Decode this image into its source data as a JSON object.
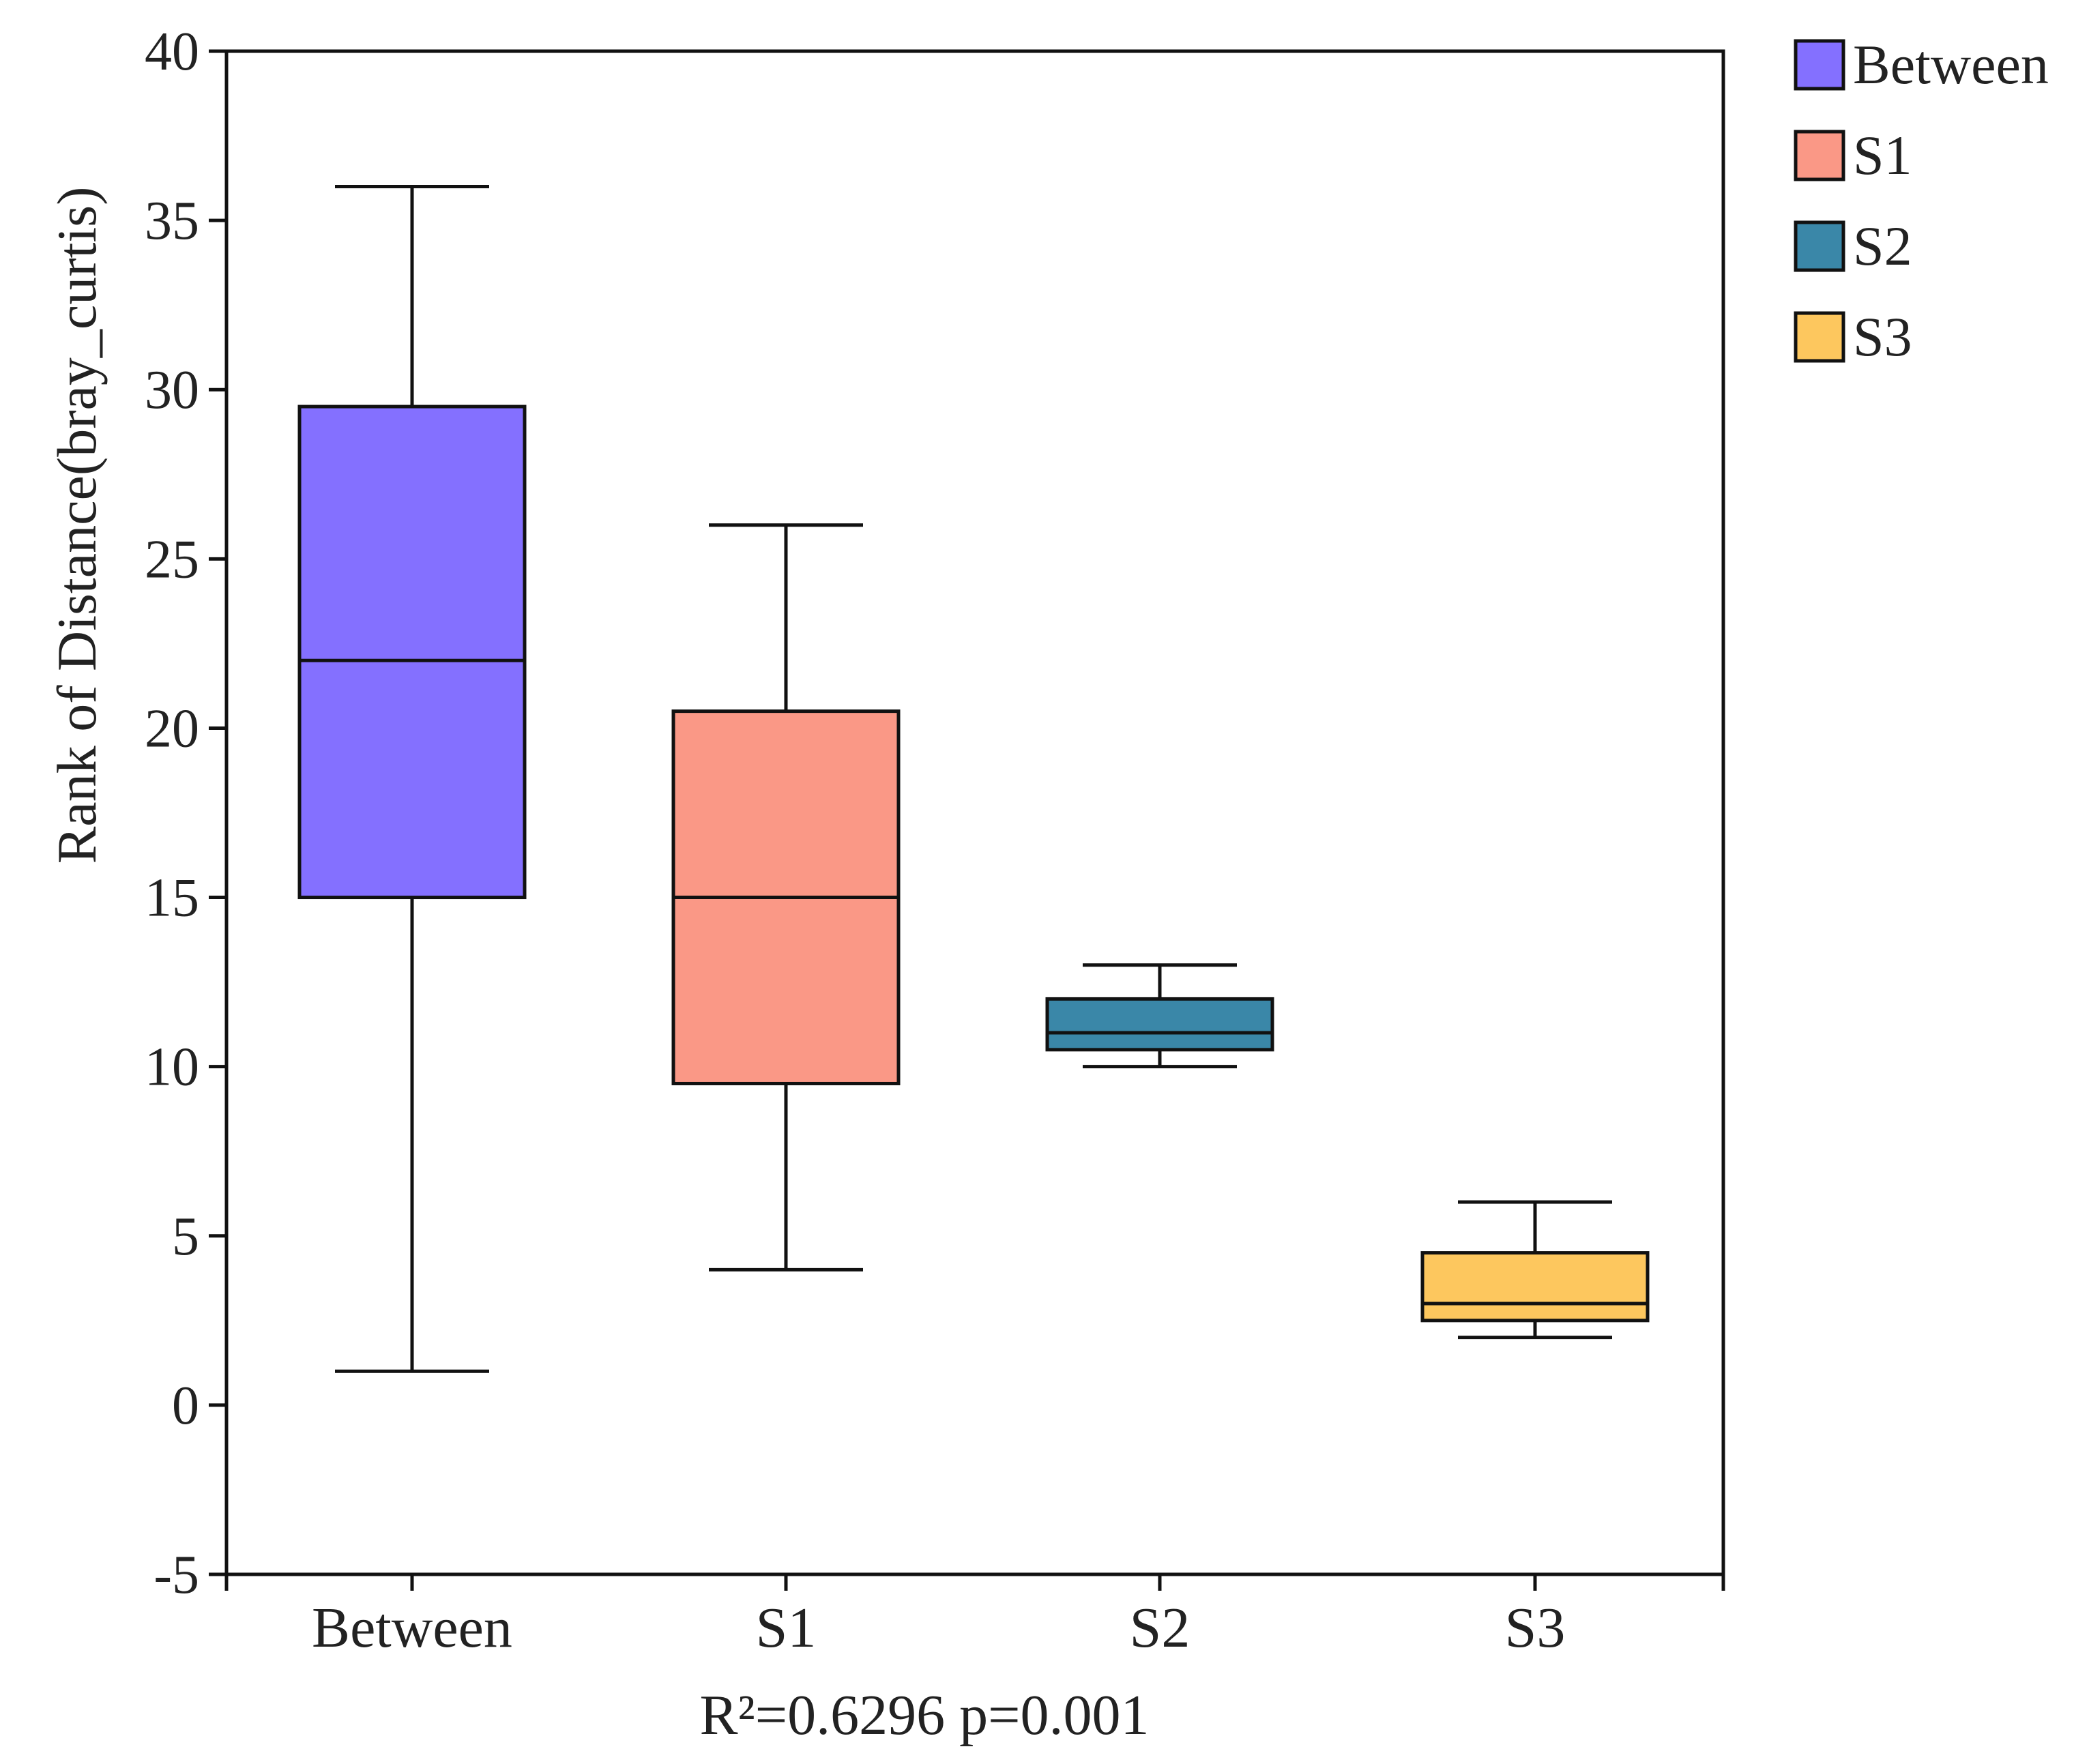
{
  "chart_data": {
    "type": "box",
    "categories": [
      "Between",
      "S1",
      "S2",
      "S3"
    ],
    "series": [
      {
        "name": "Between",
        "color": "#8470FF",
        "min": 1,
        "q1": 15,
        "median": 22,
        "q3": 29.5,
        "max": 36
      },
      {
        "name": "S1",
        "color": "#FA9886",
        "min": 4,
        "q1": 9.5,
        "median": 15,
        "q3": 20.5,
        "max": 26
      },
      {
        "name": "S2",
        "color": "#3A87A8",
        "min": 10,
        "q1": 10.5,
        "median": 11,
        "q3": 12,
        "max": 13
      },
      {
        "name": "S3",
        "color": "#FDC75E",
        "min": 2,
        "q1": 2.5,
        "median": 3,
        "q3": 4.5,
        "max": 6
      }
    ],
    "ylabel": "Rank of Distance(bray_curtis)",
    "xlabel": "",
    "ylim": [
      -5,
      40
    ],
    "yticks": [
      -5,
      0,
      5,
      10,
      15,
      20,
      25,
      30,
      35,
      40
    ],
    "ytick_labels": [
      "-5",
      "0",
      "5",
      "10",
      "15",
      "20",
      "25",
      "30",
      "35",
      "40"
    ],
    "stats_text": "R²=0.6296 p=0.001",
    "legend_position": "top-right-outside",
    "grid": false
  }
}
